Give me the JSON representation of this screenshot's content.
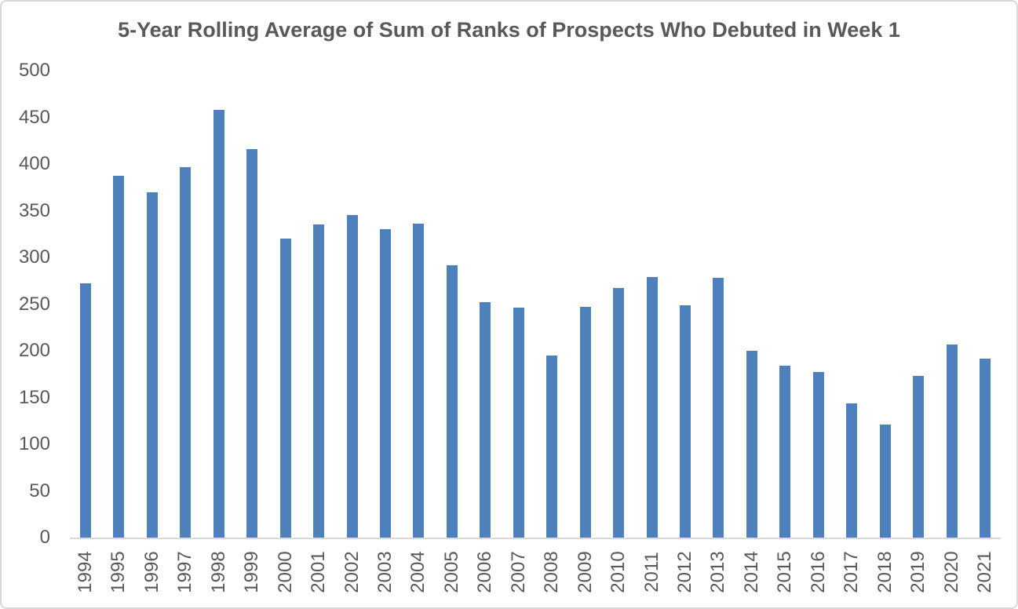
{
  "chart_data": {
    "type": "bar",
    "title": "5-Year Rolling Average of Sum of Ranks of Prospects Who Debuted in Week 1",
    "categories": [
      "1994",
      "1995",
      "1996",
      "1997",
      "1998",
      "1999",
      "2000",
      "2001",
      "2002",
      "2003",
      "2004",
      "2005",
      "2006",
      "2007",
      "2008",
      "2009",
      "2010",
      "2011",
      "2012",
      "2013",
      "2014",
      "2015",
      "2016",
      "2017",
      "2018",
      "2019",
      "2020",
      "2021"
    ],
    "values": [
      272,
      387,
      370,
      397,
      458,
      416,
      320,
      335,
      345,
      330,
      336,
      292,
      252,
      246,
      195,
      247,
      267,
      279,
      249,
      278,
      200,
      184,
      177,
      144,
      121,
      173,
      207,
      192
    ],
    "xlabel": "",
    "ylabel": "",
    "ylim": [
      0,
      500
    ],
    "y_ticks": [
      0,
      50,
      100,
      150,
      200,
      250,
      300,
      350,
      400,
      450,
      500
    ],
    "grid": false,
    "legend": "none",
    "colors": {
      "bar": "#4E80BC",
      "axis": "#D9D9D9",
      "text": "#595959",
      "border": "#D9D9D9",
      "background": "#FFFFFF"
    }
  }
}
